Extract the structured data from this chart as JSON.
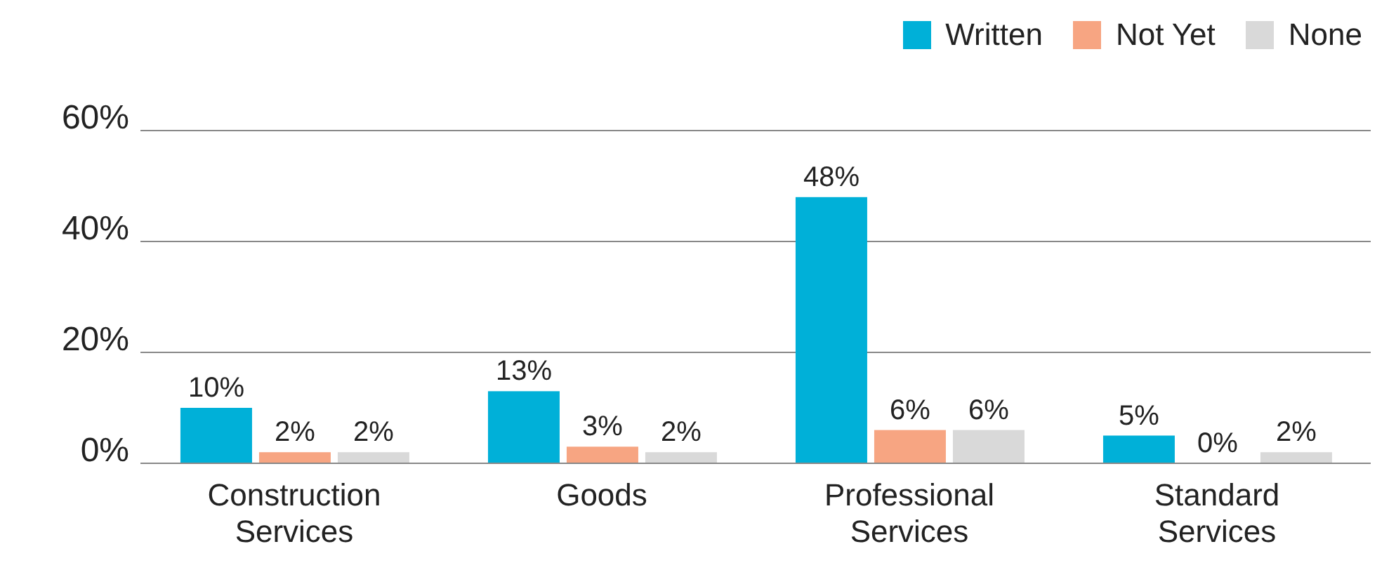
{
  "chart_data": {
    "type": "bar",
    "categories": [
      "Construction Services",
      "Goods",
      "Professional Services",
      "Standard Services"
    ],
    "series": [
      {
        "name": "Written",
        "color": "#00b0d8",
        "values": [
          10,
          13,
          48,
          5
        ],
        "value_labels": [
          "10%",
          "13%",
          "48%",
          "5%"
        ]
      },
      {
        "name": "Not Yet",
        "color": "#f7a582",
        "values": [
          2,
          3,
          6,
          0
        ],
        "value_labels": [
          "2%",
          "3%",
          "6%",
          "0%"
        ]
      },
      {
        "name": "None",
        "color": "#d9d9d9",
        "values": [
          2,
          2,
          6,
          2
        ],
        "value_labels": [
          "2%",
          "2%",
          "6%",
          "2%"
        ]
      }
    ],
    "ylim": [
      0,
      60
    ],
    "yticks": [
      {
        "value": 0,
        "label": "0%"
      },
      {
        "value": 20,
        "label": "20%"
      },
      {
        "value": 40,
        "label": "40%"
      },
      {
        "value": 60,
        "label": "60%"
      }
    ],
    "grid": "y",
    "legend": "top right"
  }
}
